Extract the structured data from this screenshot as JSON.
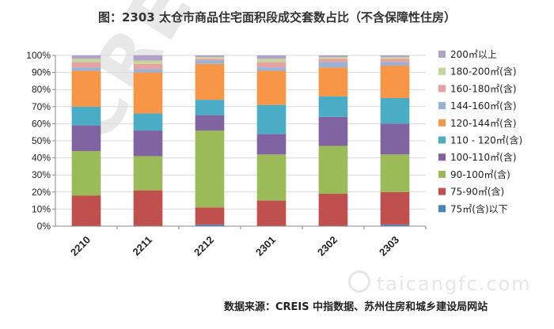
{
  "title": "图：2303 太仓市商品住宅面积段成交套数占比（不含保障性住房）",
  "source": "数据来源：CREIS 中指数据、苏州住房和城乡建设局网站",
  "watermark_brand": "CREIS",
  "watermark_site": "taicangfc.com",
  "chart_data": {
    "type": "bar",
    "stacked": "percent",
    "categories": [
      "2210",
      "2211",
      "2212",
      "2301",
      "2302",
      "2303"
    ],
    "ylim": [
      0,
      100
    ],
    "y_ticks": [
      "0%",
      "10%",
      "20%",
      "30%",
      "40%",
      "50%",
      "60%",
      "70%",
      "80%",
      "90%",
      "100%"
    ],
    "legend_position": "right",
    "series": [
      {
        "name": "75㎡(含)以下",
        "color": "#4f81bd",
        "values": [
          0,
          0,
          1,
          0,
          0,
          1
        ]
      },
      {
        "name": "75-90㎡(含)",
        "color": "#c0504d",
        "values": [
          18,
          21,
          10,
          15,
          19,
          19
        ]
      },
      {
        "name": "90-100㎡(含)",
        "color": "#9bbb59",
        "values": [
          26,
          20,
          45,
          27,
          28,
          22
        ]
      },
      {
        "name": "100-110㎡(含)",
        "color": "#8064a2",
        "values": [
          15,
          15,
          9,
          12,
          17,
          18
        ]
      },
      {
        "name": "110 - 120㎡(含)",
        "color": "#4bacc6",
        "values": [
          11,
          10,
          9,
          17,
          12,
          15
        ]
      },
      {
        "name": "120-144㎡(含)",
        "color": "#f79646",
        "values": [
          21,
          24,
          21,
          20,
          17,
          19
        ]
      },
      {
        "name": "144-160㎡(含)",
        "color": "#95b3d7",
        "values": [
          2,
          2,
          2,
          2,
          3,
          2
        ]
      },
      {
        "name": "160-180㎡(含)",
        "color": "#e6a2a2",
        "values": [
          3,
          3,
          1,
          3,
          2,
          2
        ]
      },
      {
        "name": "180-200㎡(含)",
        "color": "#c3d69b",
        "values": [
          2,
          2,
          1,
          2,
          1,
          1
        ]
      },
      {
        "name": "200㎡以上",
        "color": "#b3a2c7",
        "values": [
          2,
          3,
          1,
          2,
          1,
          1
        ]
      }
    ]
  }
}
